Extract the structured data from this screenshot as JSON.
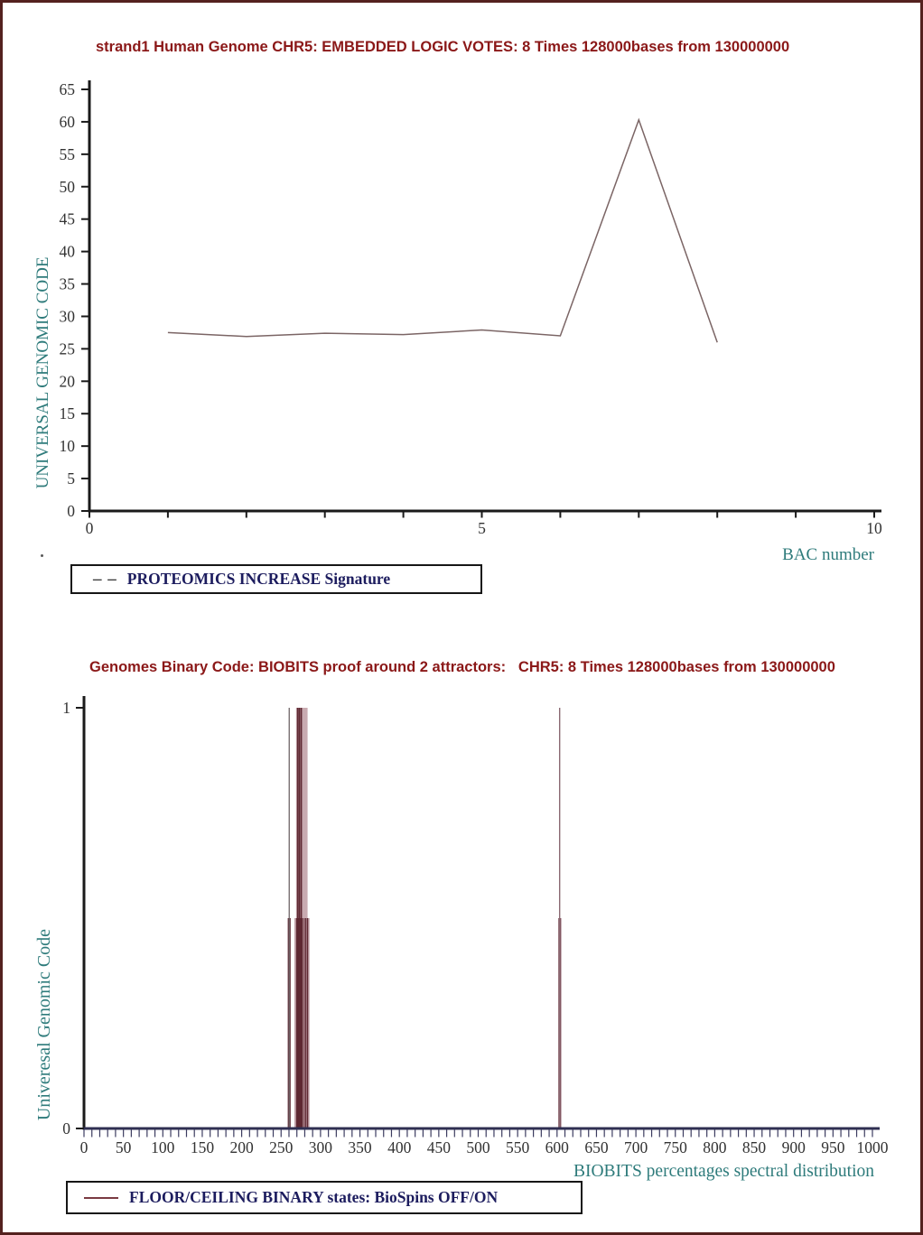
{
  "page": {
    "background": "#ffffff",
    "border_color": "#54211f",
    "stray_mark": "."
  },
  "chart_data": [
    {
      "type": "line",
      "title": "strand1 Human Genome CHR5: EMBEDDED LOGIC VOTES: 8 Times 128000bases from 130000000",
      "title_color": "#8b1818",
      "xlabel": "BAC number",
      "ylabel": "UNIVERSAL GENOMIC CODE",
      "axis_title_color": "#2e7b7b",
      "x": [
        1,
        2,
        3,
        4,
        5,
        6,
        7,
        8
      ],
      "y": [
        27.5,
        26.9,
        27.4,
        27.2,
        27.9,
        27.0,
        60.3,
        26.0
      ],
      "xlim": [
        0,
        10
      ],
      "ylim": [
        0,
        65
      ],
      "yticks": [
        0,
        5,
        10,
        15,
        20,
        25,
        30,
        35,
        40,
        45,
        50,
        55,
        60,
        65
      ],
      "xtick_labels": [
        0,
        5,
        10
      ],
      "xtick_minor_step": 1,
      "grid": false,
      "line_color": "#7b6565",
      "legend": {
        "marker": "– –",
        "label": "PROTEOMICS INCREASE Signature",
        "text_color": "#1c1c5e",
        "position": "below-left"
      }
    },
    {
      "type": "stem",
      "title": "Genomes Binary Code: BIOBITS proof around 2 attractors:   CHR5: 8 Times 128000bases from 130000000",
      "title_color": "#8b1818",
      "xlabel": "BIOBITS percentages spectral distribution",
      "ylabel": "Univeresal Genomic Code",
      "axis_title_color": "#2e7b7b",
      "xlim": [
        0,
        1000
      ],
      "ylim": [
        0,
        1
      ],
      "yticks": [
        0,
        1
      ],
      "xtick_labels": [
        0,
        50,
        100,
        150,
        200,
        250,
        300,
        350,
        400,
        450,
        500,
        550,
        600,
        650,
        700,
        750,
        800,
        850,
        900,
        950,
        1000
      ],
      "xtick_minor_step": 10,
      "grid": false,
      "spike_color": "#5f2832",
      "ceiling_height": 1,
      "floor_height": 0.5,
      "ceiling_spikes": [
        {
          "x": 260.3,
          "color": "#6e6468",
          "w": 1.3
        },
        {
          "x": 271.0,
          "w": 1.6
        },
        {
          "x": 273.2,
          "w": 1.8
        },
        {
          "x": 275.6,
          "w": 1.6
        },
        {
          "x": 603.3,
          "color": "#8b6872",
          "w": 1.4
        }
      ],
      "floor_spikes": [
        {
          "x": 259.6,
          "w": 2.0
        },
        {
          "x": 261.4,
          "w": 1.2
        },
        {
          "x": 269.8,
          "w": 1.4
        },
        {
          "x": 272.0,
          "w": 1.4
        },
        {
          "x": 274.4,
          "w": 1.4
        },
        {
          "x": 276.6,
          "w": 1.4
        },
        {
          "x": 278.6,
          "color": "#8a5a63",
          "w": 1.3
        },
        {
          "x": 280.9,
          "w": 1.4
        },
        {
          "x": 283.4,
          "w": 1.6
        },
        {
          "x": 602.4,
          "color": "#7c4f59",
          "w": 1.3
        },
        {
          "x": 604.4,
          "color": "#7c4f59",
          "w": 1.3
        }
      ],
      "bands": [
        {
          "x0": 269.0,
          "x1": 283.6,
          "h": 1.0,
          "color": "#c9abb1"
        },
        {
          "x0": 266.8,
          "x1": 286.0,
          "h": 0.5,
          "color": "#c4a4ab"
        },
        {
          "x0": 258.7,
          "x1": 261.9,
          "h": 0.5,
          "color": "#bd9aa2"
        },
        {
          "x0": 601.8,
          "x1": 605.4,
          "h": 0.5,
          "color": "#bd9aa2"
        }
      ],
      "legend": {
        "marker": "line",
        "marker_color": "#7a3a42",
        "label": "FLOOR/CEILING BINARY states: BioSpins OFF/ON",
        "text_color": "#1c1c5e",
        "position": "below-left"
      }
    }
  ]
}
